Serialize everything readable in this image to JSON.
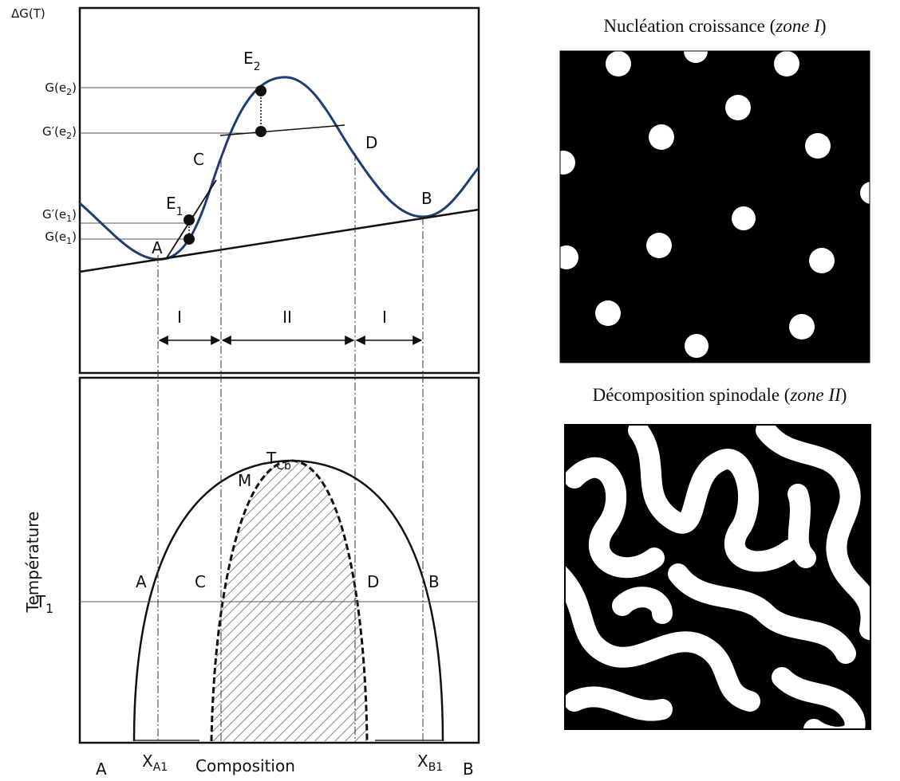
{
  "diagram": {
    "top_panel": {
      "y_label": "ΔG(T)",
      "levels": [
        {
          "main": "G(e",
          "sub": "2",
          "end": ")"
        },
        {
          "main": "G′(e",
          "sub": "2",
          "end": ")"
        },
        {
          "main": "G′(e",
          "sub": "1",
          "end": ")"
        },
        {
          "main": "G(e",
          "sub": "1",
          "end": ")"
        }
      ],
      "points": [
        {
          "main": "E",
          "sub": "2"
        },
        {
          "main": "E",
          "sub": "1"
        },
        "A",
        "C",
        "D",
        "B"
      ],
      "zones": [
        "I",
        "II",
        "I"
      ]
    },
    "bottom_panel": {
      "y_label": "Température",
      "t1": {
        "main": "T",
        "sub": "1"
      },
      "tcb": {
        "main": "T",
        "sub": "Cb"
      },
      "points": [
        "M",
        "A",
        "C",
        "D",
        "B"
      ],
      "x_axis": {
        "left": "A",
        "xa1": {
          "main": "X",
          "sub": "A1"
        },
        "label": "Composition",
        "xb1": {
          "main": "X",
          "sub": "B1"
        },
        "right": "B"
      }
    },
    "images": [
      {
        "text": "Nucléation croissance (",
        "em": "zone I",
        "end": ")"
      },
      {
        "text": "Décomposition spinodale (",
        "em": "zone II",
        "end": ")"
      }
    ]
  }
}
